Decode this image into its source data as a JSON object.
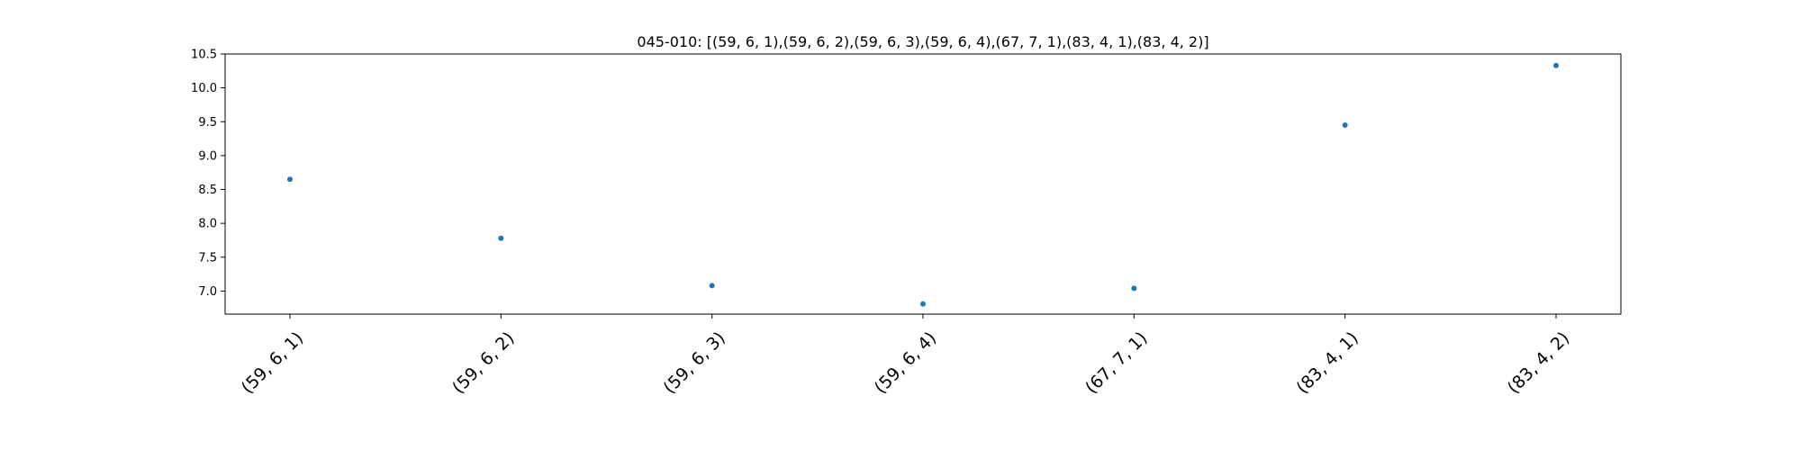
{
  "chart_data": {
    "type": "scatter",
    "title": "045-010: [(59, 6, 1),(59, 6, 2),(59, 6, 3),(59, 6, 4),(67, 7, 1),(83, 4, 1),(83, 4, 2)]",
    "xlabel": "",
    "ylabel": "",
    "categories": [
      "(59, 6, 1)",
      "(59, 6, 2)",
      "(59, 6, 3)",
      "(59, 6, 4)",
      "(67, 7, 1)",
      "(83, 4, 1)",
      "(83, 4, 2)"
    ],
    "values": [
      8.65,
      7.78,
      7.08,
      6.81,
      7.04,
      9.45,
      10.33
    ],
    "ylim": [
      6.66,
      10.5
    ],
    "yticks": [
      "7.0",
      "7.5",
      "8.0",
      "8.5",
      "9.0",
      "9.5",
      "10.0",
      "10.5"
    ],
    "grid": false,
    "legend": "none",
    "marker_color": "#1f77b4"
  }
}
